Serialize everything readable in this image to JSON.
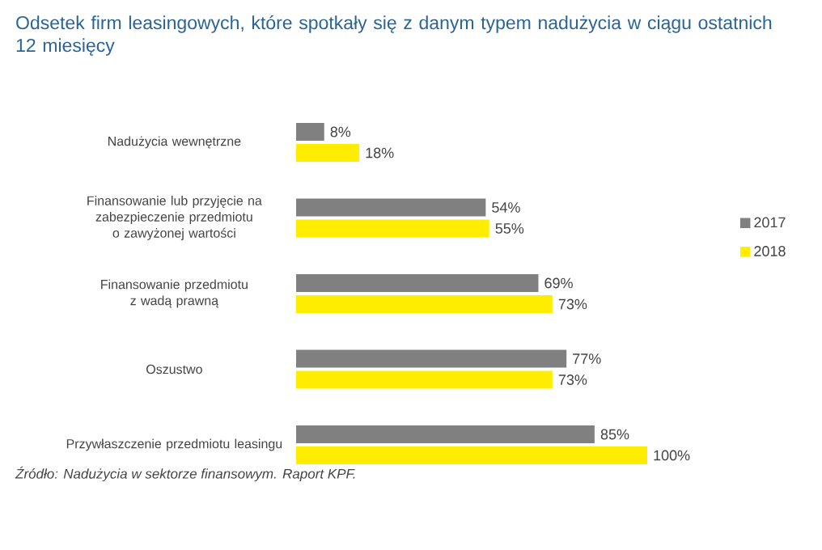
{
  "chart_data": {
    "type": "bar",
    "orientation": "horizontal",
    "title": "Odsetek firm leasingowych, które spotkały się z danym typem nadużycia w ciągu ostatnich 12 miesięcy",
    "categories": [
      "Nadużycia wewnętrzne",
      "Finansowanie lub przyjęcie na zabezpieczenie przedmiotu o zawyżonej wartości",
      "Finansowanie przedmiotu z wadą prawną",
      "Oszustwo",
      "Przywłaszczenie przedmiotu leasingu"
    ],
    "series": [
      {
        "name": "2017",
        "color": "#808080",
        "values": [
          8,
          54,
          69,
          77,
          85
        ],
        "value_labels": [
          "8%",
          "54%",
          "69%",
          "77%",
          "85%"
        ]
      },
      {
        "name": "2018",
        "color": "#ffed00",
        "values": [
          18,
          55,
          73,
          73,
          100
        ],
        "value_labels": [
          "18%",
          "55%",
          "73%",
          "73%",
          "100%"
        ]
      }
    ],
    "legend": "right",
    "annotations": [
      "Źródło: Nadużycia w sektorze finansowym. Raport KPF."
    ]
  }
}
